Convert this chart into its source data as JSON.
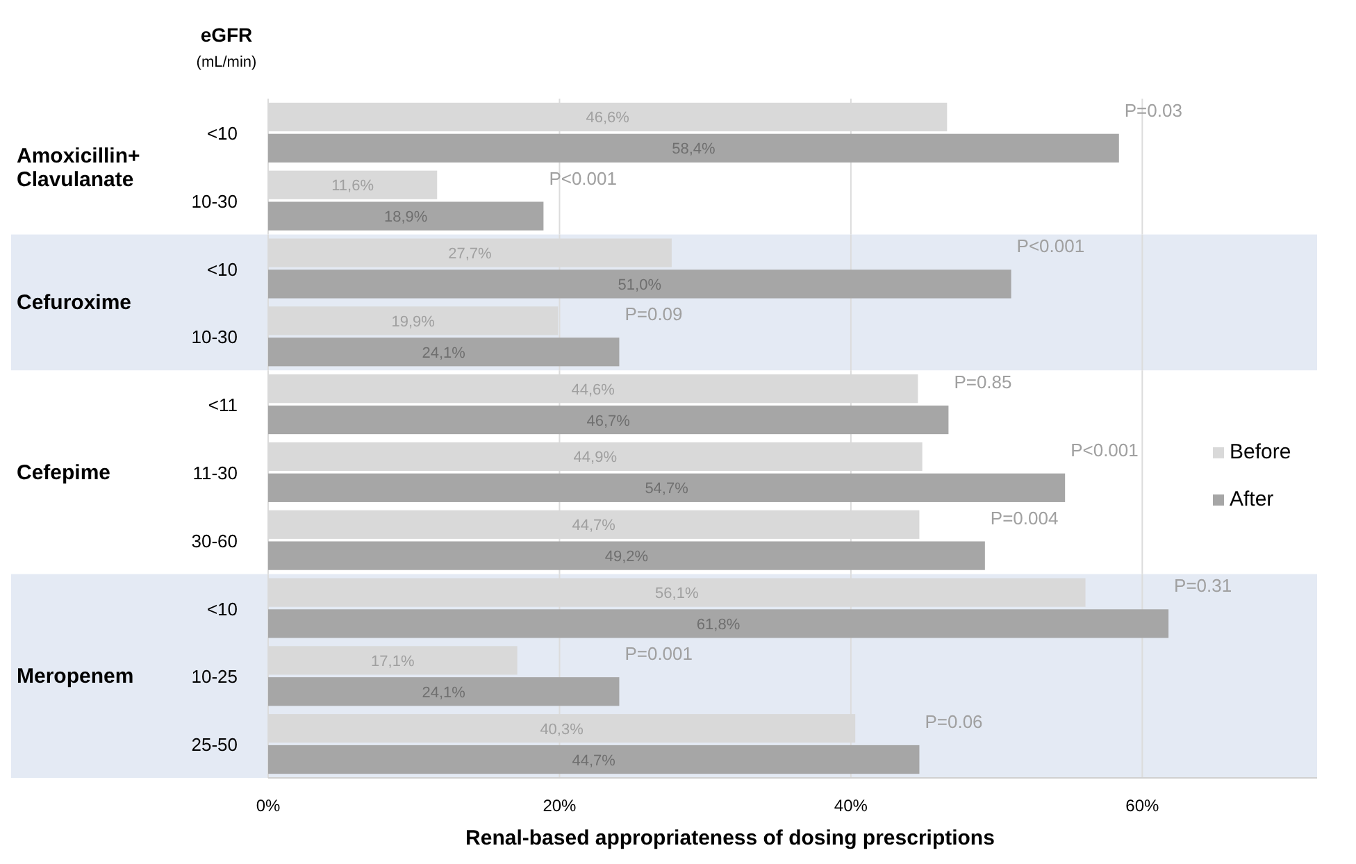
{
  "chart_data": [
    {
      "type": "bar",
      "orientation": "horizontal",
      "title": "Amoxicillin+ Clavulanate",
      "ylabel": "eGFR (mL/min)",
      "categories": [
        "<10",
        "10-30"
      ],
      "series": [
        {
          "color": "#d9d9d9",
          "values": [
            46.6,
            11.6
          ],
          "value_labels": [
            "46,6%",
            "11,6%"
          ]
        },
        {
          "color": "#a6a6a6",
          "values": [
            58.4,
            18.9
          ],
          "value_labels": [
            "58,4%",
            "18,9%"
          ]
        }
      ],
      "xlim": [
        0,
        72
      ],
      "tick_labels": "y",
      "grid": "x",
      "annotations": [
        "P=0.03",
        "P<0.001"
      ]
    },
    {
      "type": "bar",
      "orientation": "horizontal",
      "title": "Cefuroxime",
      "categories": [
        "<10",
        "10-30"
      ],
      "series": [
        {
          "color": "#d9d9d9",
          "values": [
            27.7,
            19.9
          ],
          "value_labels": [
            "27,7%",
            "19,9%"
          ]
        },
        {
          "color": "#a6a6a6",
          "values": [
            51.0,
            24.1
          ],
          "value_labels": [
            "51,0%",
            "24,1%"
          ]
        }
      ],
      "xlim": [
        0,
        72
      ],
      "tick_labels": "y",
      "grid": "x",
      "annotations": [
        "P<0.001",
        "P=0.09"
      ]
    },
    {
      "type": "bar",
      "orientation": "horizontal",
      "title": "Cefepime",
      "categories": [
        "<11",
        "11-30",
        "30-60"
      ],
      "series": [
        {
          "name": "Before",
          "color": "#d9d9d9",
          "values": [
            44.6,
            44.9,
            44.7
          ],
          "value_labels": [
            "44,6%",
            "44,9%",
            "44,7%"
          ]
        },
        {
          "name": "After",
          "color": "#a6a6a6",
          "values": [
            46.7,
            54.7,
            49.2
          ],
          "value_labels": [
            "46,7%",
            "54,7%",
            "49,2%"
          ]
        }
      ],
      "xlim": [
        0,
        72
      ],
      "tick_labels": "y",
      "grid": "x",
      "legend": "right",
      "annotations": [
        "P=0.85",
        "P<0.001",
        "P=0.004"
      ]
    },
    {
      "type": "bar",
      "orientation": "horizontal",
      "title": "Meropenem",
      "xlabel": "Renal-based appropriateness of dosing prescriptions",
      "categories": [
        "<10",
        "10-25",
        "25-50"
      ],
      "series": [
        {
          "color": "#d9d9d9",
          "values": [
            56.1,
            17.1,
            40.3
          ],
          "value_labels": [
            "56,1%",
            "17,1%",
            "40,3%"
          ]
        },
        {
          "color": "#a6a6a6",
          "values": [
            61.8,
            24.1,
            44.7
          ],
          "value_labels": [
            "61,8%",
            "24,1%",
            "44,7%"
          ]
        }
      ],
      "xlim": [
        0,
        72
      ],
      "xticks": [
        {
          "value": 0,
          "label": "0%"
        },
        {
          "value": 20,
          "label": "20%"
        },
        {
          "value": 40,
          "label": "40%"
        },
        {
          "value": 60,
          "label": "60%"
        }
      ],
      "grid": "x",
      "annotations": [
        "P=0.31",
        "P=0.001",
        "P=0.06"
      ]
    }
  ]
}
